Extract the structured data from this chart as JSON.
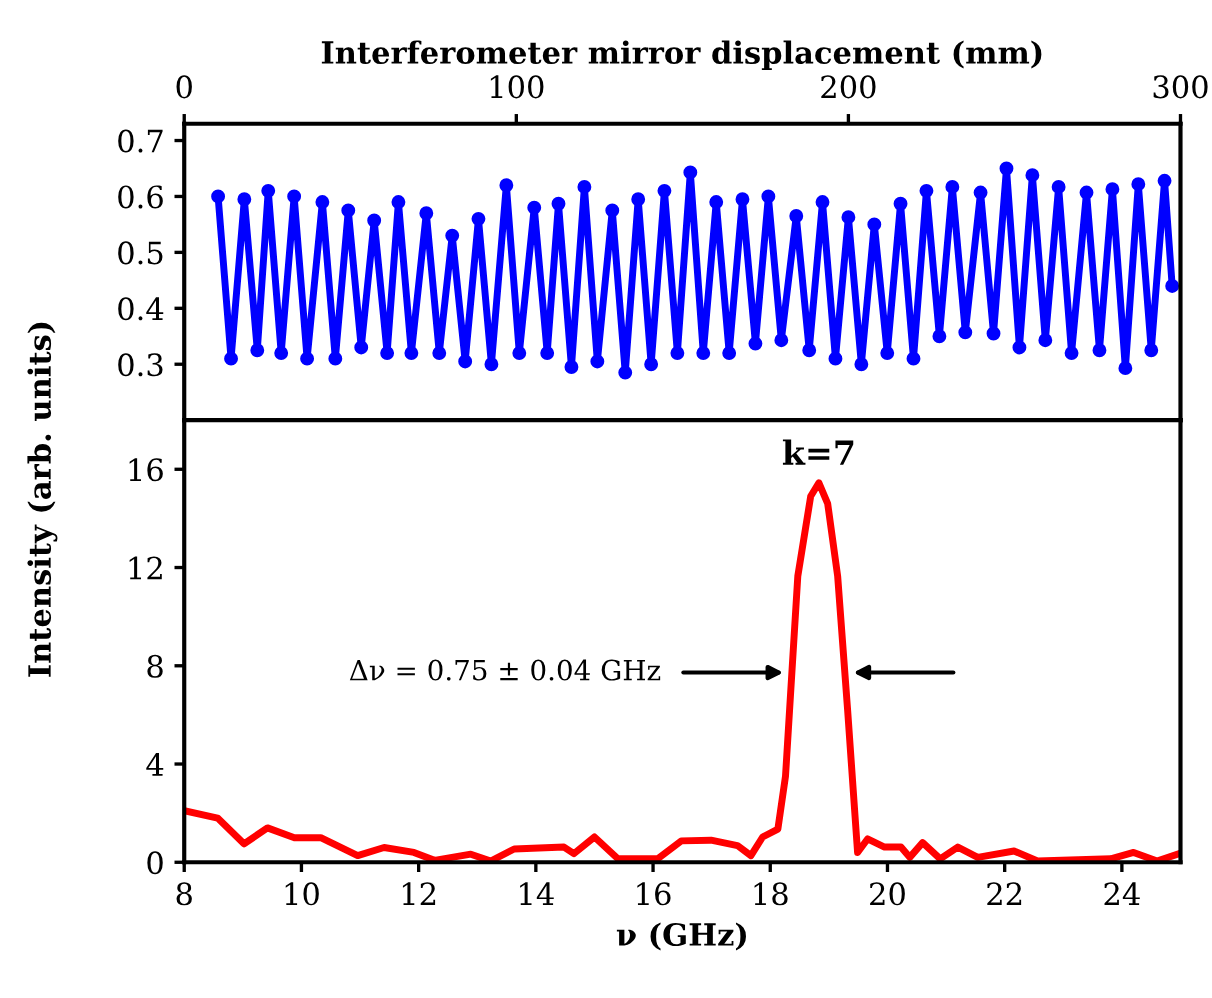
{
  "chart_data": [
    {
      "type": "line",
      "xlabel": "Interferometer mirror displacement (mm)",
      "xlim": [
        0,
        300
      ],
      "xticks": [
        0,
        100,
        200,
        300
      ],
      "ylim": [
        0.2,
        0.73
      ],
      "yticks": [
        0.3,
        0.4,
        0.5,
        0.6,
        0.7
      ],
      "marker": "circle",
      "grid": false,
      "legend": false,
      "series": [
        {
          "color": "#0000ff",
          "x": [
            10.2,
            14.1,
            18.1,
            22.0,
            25.3,
            29.2,
            33.1,
            37.0,
            41.6,
            45.5,
            49.4,
            53.3,
            57.2,
            61.1,
            64.5,
            68.4,
            72.9,
            76.8,
            80.7,
            84.6,
            88.6,
            92.5,
            97.0,
            100.9,
            105.4,
            109.3,
            112.7,
            116.6,
            120.5,
            124.4,
            128.9,
            132.8,
            136.7,
            140.6,
            144.6,
            148.5,
            152.4,
            156.3,
            160.2,
            164.1,
            168.1,
            172.0,
            175.9,
            179.8,
            184.3,
            188.2,
            192.2,
            196.1,
            200.0,
            203.9,
            207.8,
            211.7,
            215.7,
            219.6,
            223.5,
            227.4,
            231.3,
            235.2,
            239.8,
            243.7,
            247.6,
            251.5,
            255.4,
            259.3,
            263.3,
            267.2,
            271.7,
            275.6,
            279.5,
            283.4,
            287.3,
            291.2,
            295.2,
            297.5
          ],
          "values": [
            0.6,
            0.31,
            0.595,
            0.325,
            0.61,
            0.32,
            0.6,
            0.31,
            0.59,
            0.31,
            0.575,
            0.33,
            0.557,
            0.32,
            0.59,
            0.32,
            0.57,
            0.32,
            0.53,
            0.305,
            0.56,
            0.3,
            0.62,
            0.32,
            0.58,
            0.32,
            0.587,
            0.295,
            0.617,
            0.305,
            0.575,
            0.285,
            0.595,
            0.3,
            0.61,
            0.32,
            0.643,
            0.32,
            0.59,
            0.32,
            0.595,
            0.337,
            0.6,
            0.343,
            0.565,
            0.325,
            0.59,
            0.31,
            0.563,
            0.3,
            0.55,
            0.32,
            0.587,
            0.31,
            0.61,
            0.35,
            0.617,
            0.357,
            0.607,
            0.355,
            0.65,
            0.33,
            0.638,
            0.343,
            0.617,
            0.32,
            0.607,
            0.325,
            0.613,
            0.293,
            0.622,
            0.325,
            0.628,
            0.44
          ]
        }
      ]
    },
    {
      "type": "line",
      "xlabel": "ν (GHz)",
      "ylabel": "Intensity (arb. units)",
      "xlim": [
        8,
        25
      ],
      "xticks": [
        8,
        10,
        12,
        14,
        16,
        18,
        20,
        22,
        24
      ],
      "ylim": [
        0,
        18
      ],
      "yticks": [
        0,
        4,
        8,
        12,
        16
      ],
      "grid": false,
      "legend": false,
      "annotations": [
        "k=7",
        "Δν = 0.75 ± 0.04 GHz"
      ],
      "series": [
        {
          "color": "#ff0000",
          "x": [
            8.0,
            8.57,
            9.02,
            9.42,
            9.88,
            10.33,
            10.96,
            11.41,
            11.92,
            12.27,
            12.89,
            13.23,
            13.63,
            14.48,
            14.65,
            15.0,
            15.4,
            16.08,
            16.48,
            16.99,
            17.44,
            17.67,
            17.87,
            18.13,
            18.26,
            18.47,
            18.69,
            18.83,
            18.98,
            19.15,
            19.32,
            19.49,
            19.66,
            19.95,
            20.23,
            20.38,
            20.6,
            20.9,
            21.2,
            21.54,
            22.16,
            22.56,
            23.81,
            24.2,
            24.6,
            24.95
          ],
          "values": [
            2.1,
            1.8,
            0.75,
            1.4,
            1.0,
            1.0,
            0.27,
            0.6,
            0.4,
            0.08,
            0.33,
            0.05,
            0.54,
            0.62,
            0.35,
            1.03,
            0.14,
            0.14,
            0.87,
            0.9,
            0.68,
            0.27,
            1.03,
            1.35,
            3.5,
            11.65,
            14.9,
            15.45,
            14.6,
            11.65,
            6.2,
            0.4,
            0.95,
            0.62,
            0.62,
            0.2,
            0.8,
            0.14,
            0.62,
            0.2,
            0.46,
            0.05,
            0.14,
            0.4,
            0.05,
            0.33
          ]
        }
      ]
    }
  ]
}
